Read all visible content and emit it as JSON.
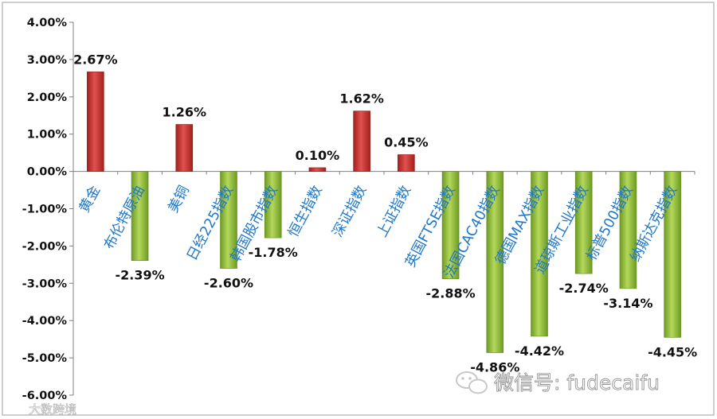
{
  "chart_data": {
    "type": "bar",
    "title": "",
    "xlabel": "",
    "ylabel": "",
    "ylim": [
      -6,
      4
    ],
    "y_ticks": [
      {
        "value": 4,
        "label": "4.00%"
      },
      {
        "value": 3,
        "label": "3.00%"
      },
      {
        "value": 2,
        "label": "2.00%"
      },
      {
        "value": 1,
        "label": "1.00%"
      },
      {
        "value": 0,
        "label": "0.00%"
      },
      {
        "value": -1,
        "label": "-1.00%"
      },
      {
        "value": -2,
        "label": "-2.00%"
      },
      {
        "value": -3,
        "label": "-3.00%"
      },
      {
        "value": -4,
        "label": "-4.00%"
      },
      {
        "value": -5,
        "label": "-5.00%"
      },
      {
        "value": -6,
        "label": "-6.00%"
      }
    ],
    "grid": false,
    "categories": [
      "黄金",
      "布伦特原油",
      "美铜",
      "日经225指数",
      "韩国股市指数",
      "恒生指数",
      "深证指数",
      "上证指数",
      "英国FTSE指数",
      "法国CAC40指数",
      "德国MAX指数",
      "道琼斯工业指数",
      "标普500指数",
      "纳斯达克指数"
    ],
    "values": [
      2.67,
      -2.39,
      1.26,
      -2.6,
      -1.78,
      0.1,
      1.62,
      0.45,
      -2.88,
      -4.86,
      -4.42,
      -2.74,
      -3.14,
      -4.45
    ],
    "data_labels": [
      "2.67%",
      "-2.39%",
      "1.26%",
      "-2.60%",
      "-1.78%",
      "0.10%",
      "1.62%",
      "0.45%",
      "-2.88%",
      "-4.86%",
      "-4.42%",
      "-2.74%",
      "-3.14%",
      "-4.45%"
    ],
    "colors": {
      "positive": "#c8302e",
      "negative": "#8fba35",
      "category_text": "#1f77c8",
      "axis": "#7f7f7f"
    }
  },
  "watermark": {
    "right_text": "微信号: fudecaifu",
    "left_text": "大数跨境"
  }
}
